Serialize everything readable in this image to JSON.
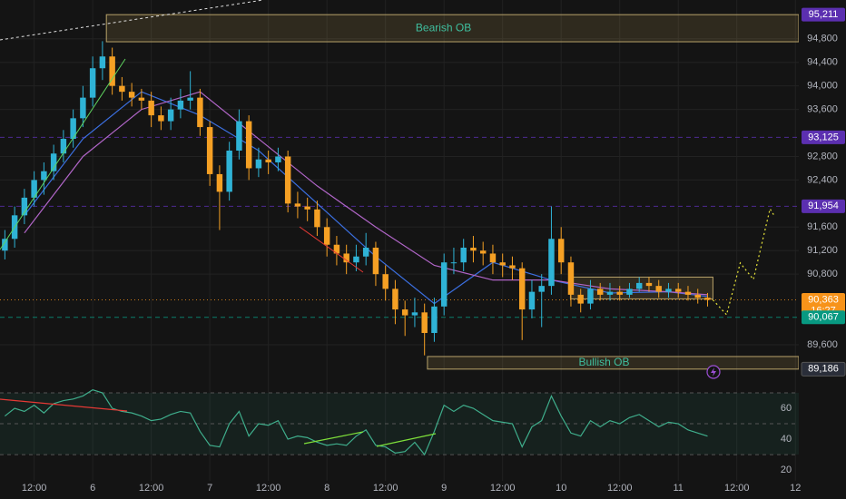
{
  "chart_data": {
    "type": "candlestick",
    "xlim": [
      5,
      168.7
    ],
    "xticks": [
      {
        "value": 12,
        "label": "12:00"
      },
      {
        "value": 24,
        "label": "6"
      },
      {
        "value": 36,
        "label": "12:00"
      },
      {
        "value": 48,
        "label": "7"
      },
      {
        "value": 60,
        "label": "12:00"
      },
      {
        "value": 72,
        "label": "8"
      },
      {
        "value": 84,
        "label": "12:00"
      },
      {
        "value": 96,
        "label": "9"
      },
      {
        "value": 108,
        "label": "12:00"
      },
      {
        "value": 120,
        "label": "10"
      },
      {
        "value": 132,
        "label": "12:00"
      },
      {
        "value": 144,
        "label": "11"
      },
      {
        "value": 156,
        "label": "12:00"
      },
      {
        "value": 168,
        "label": "12"
      }
    ],
    "ylim": [
      89060,
      95460
    ],
    "yticks": [
      {
        "value": 94800,
        "label": "94,800"
      },
      {
        "value": 94400,
        "label": "94,400"
      },
      {
        "value": 94000,
        "label": "94,000"
      },
      {
        "value": 93600,
        "label": "93,600"
      },
      {
        "value": 92800,
        "label": "92,800"
      },
      {
        "value": 92400,
        "label": "92,400"
      },
      {
        "value": 91600,
        "label": "91,600"
      },
      {
        "value": 91200,
        "label": "91,200"
      },
      {
        "value": 90800,
        "label": "90,800"
      },
      {
        "value": 89600,
        "label": "89,600"
      }
    ],
    "grid": true,
    "up_color": "#2fb3d6",
    "down_color": "#f5a024",
    "x": [
      6,
      8,
      10,
      12,
      14,
      16,
      18,
      20,
      22,
      24,
      26,
      28,
      30,
      32,
      34,
      36,
      38,
      40,
      42,
      44,
      46,
      48,
      50,
      52,
      54,
      56,
      58,
      60,
      62,
      64,
      66,
      68,
      70,
      72,
      74,
      76,
      78,
      80,
      82,
      84,
      86,
      88,
      90,
      92,
      94,
      96,
      98,
      100,
      102,
      104,
      106,
      108,
      110,
      112,
      114,
      116,
      118,
      120,
      122,
      124,
      126,
      128,
      130,
      132,
      134,
      136,
      138,
      140,
      142,
      144,
      146,
      148,
      150
    ],
    "candles": [
      [
        91200,
        91550,
        91050,
        91400
      ],
      [
        91400,
        91950,
        91250,
        91800
      ],
      [
        91800,
        92250,
        91650,
        92100
      ],
      [
        92100,
        92550,
        91950,
        92400
      ],
      [
        92400,
        92700,
        92150,
        92550
      ],
      [
        92550,
        93000,
        92400,
        92850
      ],
      [
        92850,
        93250,
        92700,
        93100
      ],
      [
        93100,
        93600,
        92950,
        93450
      ],
      [
        93450,
        94000,
        93300,
        93800
      ],
      [
        93800,
        94500,
        93650,
        94300
      ],
      [
        94300,
        94760,
        94100,
        94500
      ],
      [
        94500,
        94650,
        93850,
        94000
      ],
      [
        94000,
        94150,
        93750,
        93900
      ],
      [
        93900,
        94050,
        93650,
        93800
      ],
      [
        93800,
        93950,
        93600,
        93750
      ],
      [
        93750,
        93900,
        93300,
        93500
      ],
      [
        93500,
        93650,
        93250,
        93400
      ],
      [
        93400,
        93800,
        93250,
        93600
      ],
      [
        93600,
        93950,
        93450,
        93750
      ],
      [
        93750,
        94250,
        93600,
        93800
      ],
      [
        93800,
        93950,
        93150,
        93300
      ],
      [
        93300,
        93400,
        92300,
        92500
      ],
      [
        92500,
        92650,
        91550,
        92200
      ],
      [
        92200,
        93050,
        92050,
        92900
      ],
      [
        92900,
        93600,
        92750,
        93400
      ],
      [
        93400,
        93500,
        92400,
        92600
      ],
      [
        92600,
        92950,
        92450,
        92750
      ],
      [
        92750,
        92900,
        92500,
        92700
      ],
      [
        92700,
        92950,
        92550,
        92800
      ],
      [
        92800,
        92900,
        91850,
        92000
      ],
      [
        92000,
        92200,
        91750,
        91950
      ],
      [
        91950,
        92100,
        91700,
        91900
      ],
      [
        91900,
        92050,
        91450,
        91600
      ],
      [
        91600,
        91750,
        91100,
        91300
      ],
      [
        91300,
        91450,
        90950,
        91150
      ],
      [
        91150,
        91300,
        90800,
        91000
      ],
      [
        91000,
        91300,
        90850,
        91100
      ],
      [
        91100,
        91500,
        90950,
        91250
      ],
      [
        91250,
        91350,
        90600,
        90800
      ],
      [
        90800,
        90950,
        90350,
        90550
      ],
      [
        90550,
        90700,
        89950,
        90200
      ],
      [
        90200,
        90350,
        89750,
        90100
      ],
      [
        90100,
        90400,
        89900,
        90150
      ],
      [
        90150,
        90300,
        89420,
        89800
      ],
      [
        89800,
        90400,
        89650,
        90250
      ],
      [
        90250,
        91150,
        90100,
        91000
      ],
      [
        91000,
        91250,
        90800,
        91000
      ],
      [
        91000,
        91400,
        90850,
        91250
      ],
      [
        91250,
        91450,
        91000,
        91200
      ],
      [
        91200,
        91350,
        90950,
        91150
      ],
      [
        91150,
        91300,
        90800,
        91000
      ],
      [
        91000,
        91150,
        90750,
        90950
      ],
      [
        90950,
        91100,
        90700,
        90900
      ],
      [
        90900,
        91000,
        89680,
        90200
      ],
      [
        90200,
        90700,
        90050,
        90500
      ],
      [
        90500,
        90800,
        89900,
        90600
      ],
      [
        90600,
        91950,
        90450,
        91400
      ],
      [
        91400,
        91600,
        90800,
        91000
      ],
      [
        91000,
        91100,
        90250,
        90450
      ],
      [
        90450,
        90550,
        90150,
        90300
      ],
      [
        90300,
        90700,
        90200,
        90550
      ],
      [
        90550,
        90650,
        90350,
        90450
      ],
      [
        90450,
        90650,
        90350,
        90500
      ],
      [
        90500,
        90600,
        90350,
        90450
      ],
      [
        90450,
        90650,
        90400,
        90550
      ],
      [
        90550,
        90750,
        90500,
        90650
      ],
      [
        90650,
        90750,
        90500,
        90600
      ],
      [
        90600,
        90700,
        90400,
        90500
      ],
      [
        90500,
        90650,
        90400,
        90550
      ],
      [
        90550,
        90650,
        90400,
        90500
      ],
      [
        90500,
        90600,
        90350,
        90450
      ],
      [
        90450,
        90550,
        90300,
        90400
      ],
      [
        90400,
        90480,
        90250,
        90363
      ]
    ],
    "averages": [
      {
        "color": "#3b6fe0",
        "x": [
          10,
          22,
          34,
          46,
          58,
          70,
          82,
          94,
          106,
          118,
          130,
          142,
          150
        ],
        "values": [
          91800,
          93100,
          93900,
          93500,
          92900,
          92000,
          91100,
          90300,
          91000,
          90700,
          90480,
          90500,
          90420
        ]
      },
      {
        "color": "#b065c7",
        "x": [
          10,
          22,
          34,
          46,
          58,
          70,
          82,
          94,
          106,
          118,
          130,
          142,
          150
        ],
        "values": [
          91500,
          92800,
          93600,
          93900,
          93100,
          92300,
          91600,
          90950,
          90700,
          90700,
          90550,
          90500,
          90450
        ]
      }
    ],
    "zones": [
      {
        "label": "Bearish OB",
        "from": 26.8,
        "to": 168.7,
        "low": 94750,
        "high": 95211
      },
      {
        "label": "Bullish OB",
        "from": 92.6,
        "to": 168.7,
        "low": 89186,
        "high": 89400
      },
      {
        "from": 121.9,
        "to": 151.1,
        "low": 90380,
        "high": 90750
      }
    ],
    "levels": [
      {
        "value": 95211,
        "label": "95,211",
        "color": "#5b2fb0",
        "line": "none"
      },
      {
        "value": 93125,
        "label": "93,125",
        "color": "#5b2fb0",
        "line": "dashed"
      },
      {
        "value": 91954,
        "label": "91,954",
        "color": "#5b2fb0",
        "line": "dashed"
      },
      {
        "value": 90363,
        "label": "90,363",
        "timer": "16:27",
        "color": "#f7931a",
        "line": "dotted"
      },
      {
        "value": 90067,
        "label": "90,067",
        "color": "#089981",
        "line": "dashed"
      },
      {
        "value": 89186,
        "label": "89,186",
        "color": "#2a2e39",
        "line": "none"
      }
    ],
    "projection": {
      "color": "#e8e53a",
      "x": [
        151.1,
        153.9,
        156.7,
        159.4,
        162.8,
        163.7
      ],
      "values": [
        90363,
        90110,
        90990,
        90710,
        91910,
        91790
      ]
    },
    "rsi": {
      "color": "#3fae8c",
      "ylim": [
        13,
        80.6
      ],
      "yticks": [
        20,
        40,
        60
      ],
      "levels": [
        30,
        50,
        70
      ],
      "values": [
        55,
        60,
        58,
        62,
        57,
        63,
        65,
        66,
        68,
        72,
        70,
        60,
        58,
        57,
        55,
        52,
        53,
        56,
        58,
        57,
        45,
        36,
        35,
        50,
        58,
        42,
        50,
        49,
        52,
        40,
        42,
        41,
        38,
        36,
        37,
        36,
        42,
        46,
        36,
        35,
        31,
        32,
        38,
        30,
        45,
        62,
        58,
        62,
        60,
        56,
        52,
        51,
        50,
        35,
        48,
        52,
        68,
        55,
        44,
        42,
        52,
        48,
        52,
        50,
        54,
        56,
        52,
        48,
        51,
        50,
        46,
        44,
        42
      ]
    }
  }
}
